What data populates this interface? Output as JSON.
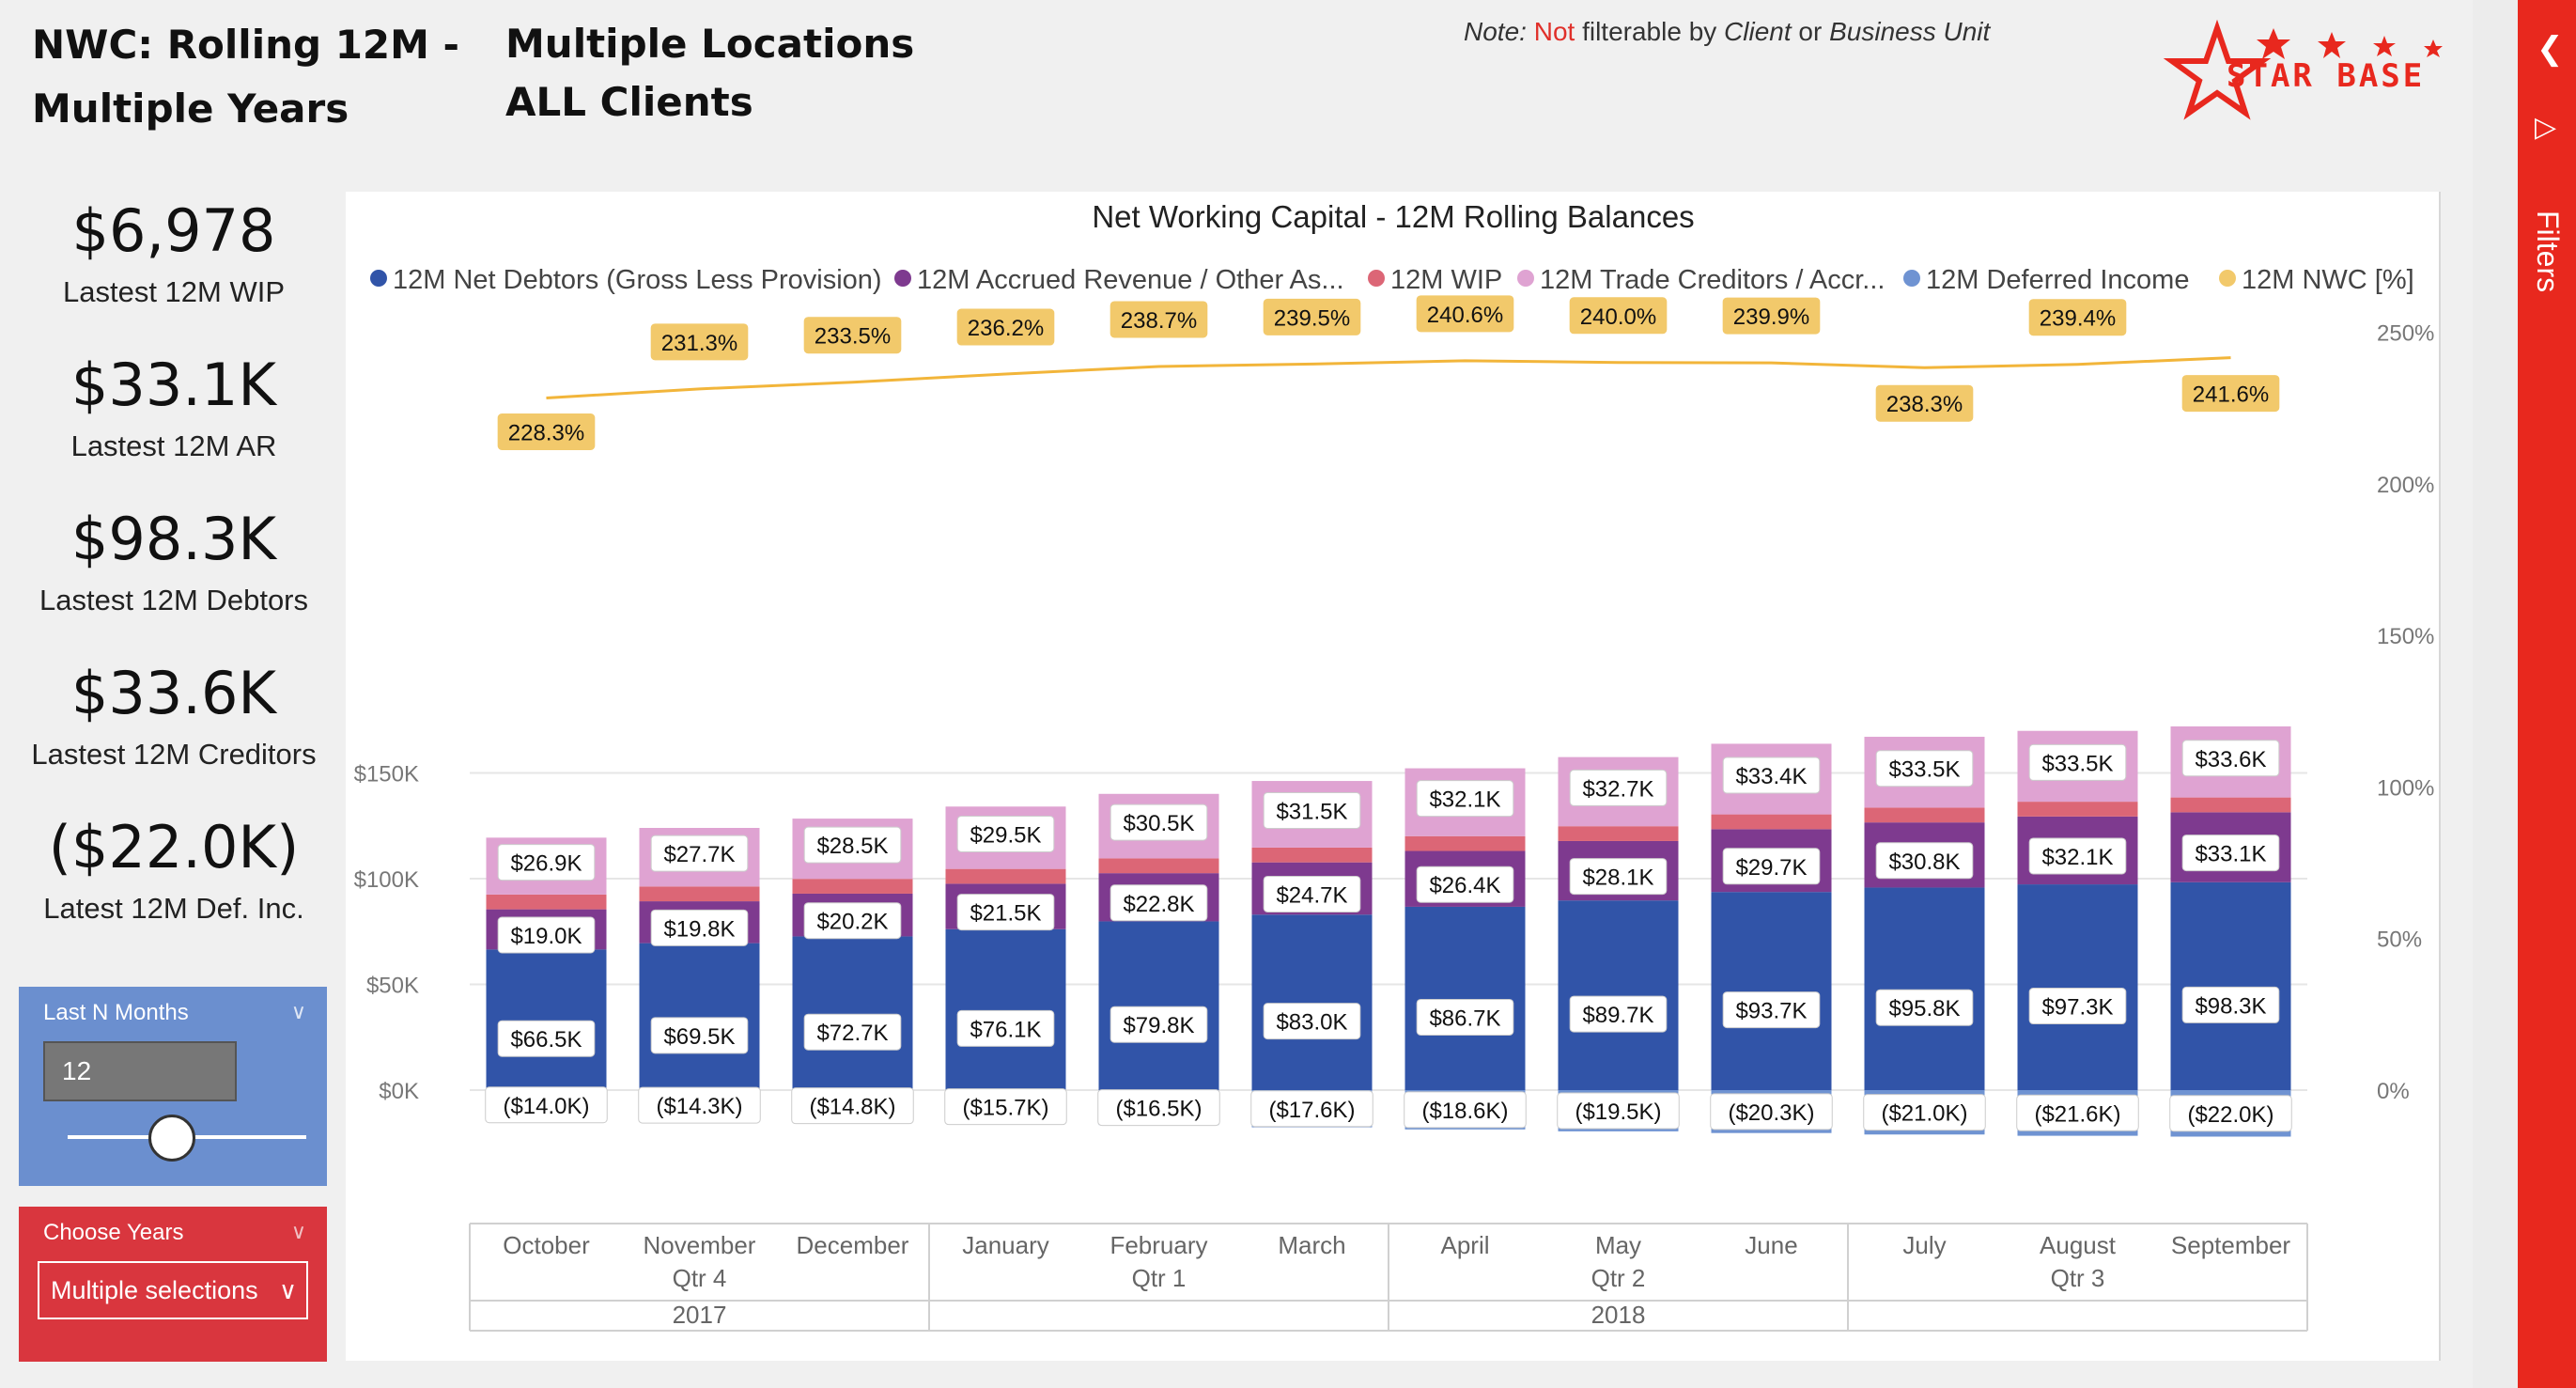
{
  "header": {
    "title_line1": "NWC: Rolling 12M -",
    "title_line2": "Multiple Years",
    "subtitle_line1": "Multiple Locations",
    "subtitle_line2": "ALL Clients",
    "note_prefix": "Note:",
    "note_red": "Not",
    "note_mid": "filterable by",
    "note_client": "Client",
    "note_or": "or",
    "note_bu": "Business Unit",
    "logo_text": "STAR BASE"
  },
  "kpis": [
    {
      "value": "$6,978",
      "label": "Lastest 12M WIP"
    },
    {
      "value": "$33.1K",
      "label": "Lastest 12M AR"
    },
    {
      "value": "$98.3K",
      "label": "Lastest 12M Debtors"
    },
    {
      "value": "$33.6K",
      "label": "Lastest 12M Creditors"
    },
    {
      "value": "($22.0K)",
      "label": "Latest 12M Def. Inc."
    }
  ],
  "slicer_months": {
    "title": "Last N Months",
    "value": "12"
  },
  "slicer_years": {
    "title": "Choose Years",
    "selection": "Multiple selections"
  },
  "filters_pane": {
    "label": "Filters"
  },
  "colors": {
    "debtors": "#3154a8",
    "accrued": "#7e3a8f",
    "wip": "#dc6676",
    "creditors": "#dfa3d2",
    "deferred": "#6f93d2",
    "nwc": "#f2c96b",
    "nwc_line": "#f2b53a",
    "brand_red": "#e8281e"
  },
  "chart_data": {
    "type": "bar",
    "title": "Net Working Capital - 12M Rolling Balances",
    "categories": [
      "October",
      "November",
      "December",
      "January",
      "February",
      "March",
      "April",
      "May",
      "June",
      "July",
      "August",
      "September"
    ],
    "quarter_labels": [
      "",
      "Qtr 4",
      "",
      "",
      "Qtr 1",
      "",
      "",
      "Qtr 2",
      "",
      "",
      "Qtr 3",
      ""
    ],
    "year_groups": [
      {
        "label": "2017",
        "from": 0,
        "to": 2
      },
      {
        "label": "2018",
        "from": 3,
        "to": 11
      }
    ],
    "series": [
      {
        "name": "12M Net Debtors (Gross Less Provision)",
        "key": "debtors",
        "values": [
          66500,
          69500,
          72700,
          76100,
          79800,
          83000,
          86700,
          89700,
          93700,
          95800,
          97300,
          98300
        ],
        "labels": [
          "$66.5K",
          "$69.5K",
          "$72.7K",
          "$76.1K",
          "$79.8K",
          "$83.0K",
          "$86.7K",
          "$89.7K",
          "$93.7K",
          "$95.8K",
          "$97.3K",
          "$98.3K"
        ]
      },
      {
        "name": "12M Accrued Revenue / Other As...",
        "key": "accrued",
        "values": [
          19000,
          19800,
          20200,
          21500,
          22800,
          24700,
          26400,
          28100,
          29700,
          30800,
          32100,
          33100
        ],
        "labels": [
          "$19.0K",
          "$19.8K",
          "$20.2K",
          "$21.5K",
          "$22.8K",
          "$24.7K",
          "$26.4K",
          "$28.1K",
          "$29.7K",
          "$30.8K",
          "$32.1K",
          "$33.1K"
        ]
      },
      {
        "name": "12M WIP",
        "key": "wip",
        "values": [
          7000,
          7000,
          7000,
          7000,
          7000,
          7000,
          7000,
          7000,
          7000,
          7000,
          7000,
          7000
        ],
        "labels": []
      },
      {
        "name": "12M Trade Creditors / Accr...",
        "key": "creditors",
        "values": [
          26900,
          27700,
          28500,
          29500,
          30500,
          31500,
          32100,
          32700,
          33400,
          33500,
          33500,
          33600
        ],
        "labels": [
          "$26.9K",
          "$27.7K",
          "$28.5K",
          "$29.5K",
          "$30.5K",
          "$31.5K",
          "$32.1K",
          "$32.7K",
          "$33.4K",
          "$33.5K",
          "$33.5K",
          "$33.6K"
        ]
      },
      {
        "name": "12M Deferred Income",
        "key": "deferred",
        "values": [
          -14000,
          -14300,
          -14800,
          -15700,
          -16500,
          -17600,
          -18600,
          -19500,
          -20300,
          -21000,
          -21600,
          -22000
        ],
        "labels": [
          "($14.0K)",
          "($14.3K)",
          "($14.8K)",
          "($15.7K)",
          "($16.5K)",
          "($17.6K)",
          "($18.6K)",
          "($19.5K)",
          "($20.3K)",
          "($21.0K)",
          "($21.6K)",
          "($22.0K)"
        ]
      },
      {
        "name": "12M NWC [%]",
        "key": "nwc",
        "axis": "right",
        "values": [
          228.3,
          231.3,
          233.5,
          236.2,
          238.7,
          239.5,
          240.6,
          240.0,
          239.9,
          238.3,
          239.4,
          241.6
        ],
        "labels": [
          "228.3%",
          "231.3%",
          "233.5%",
          "236.2%",
          "238.7%",
          "239.5%",
          "240.6%",
          "240.0%",
          "239.9%",
          "238.3%",
          "239.4%",
          "241.6%"
        ]
      }
    ],
    "y_left": {
      "ticks": [
        "$0K",
        "$50K",
        "$100K",
        "$150K"
      ],
      "tick_values": [
        0,
        50000,
        100000,
        150000
      ],
      "ylim": [
        -25000,
        182000
      ]
    },
    "y_right": {
      "ticks": [
        "0%",
        "50%",
        "100%",
        "150%",
        "200%",
        "250%"
      ],
      "tick_values": [
        0,
        50,
        100,
        150,
        200,
        250
      ],
      "ylim": [
        -33.9,
        271.2
      ]
    },
    "legend_position": "top",
    "grid": true
  }
}
